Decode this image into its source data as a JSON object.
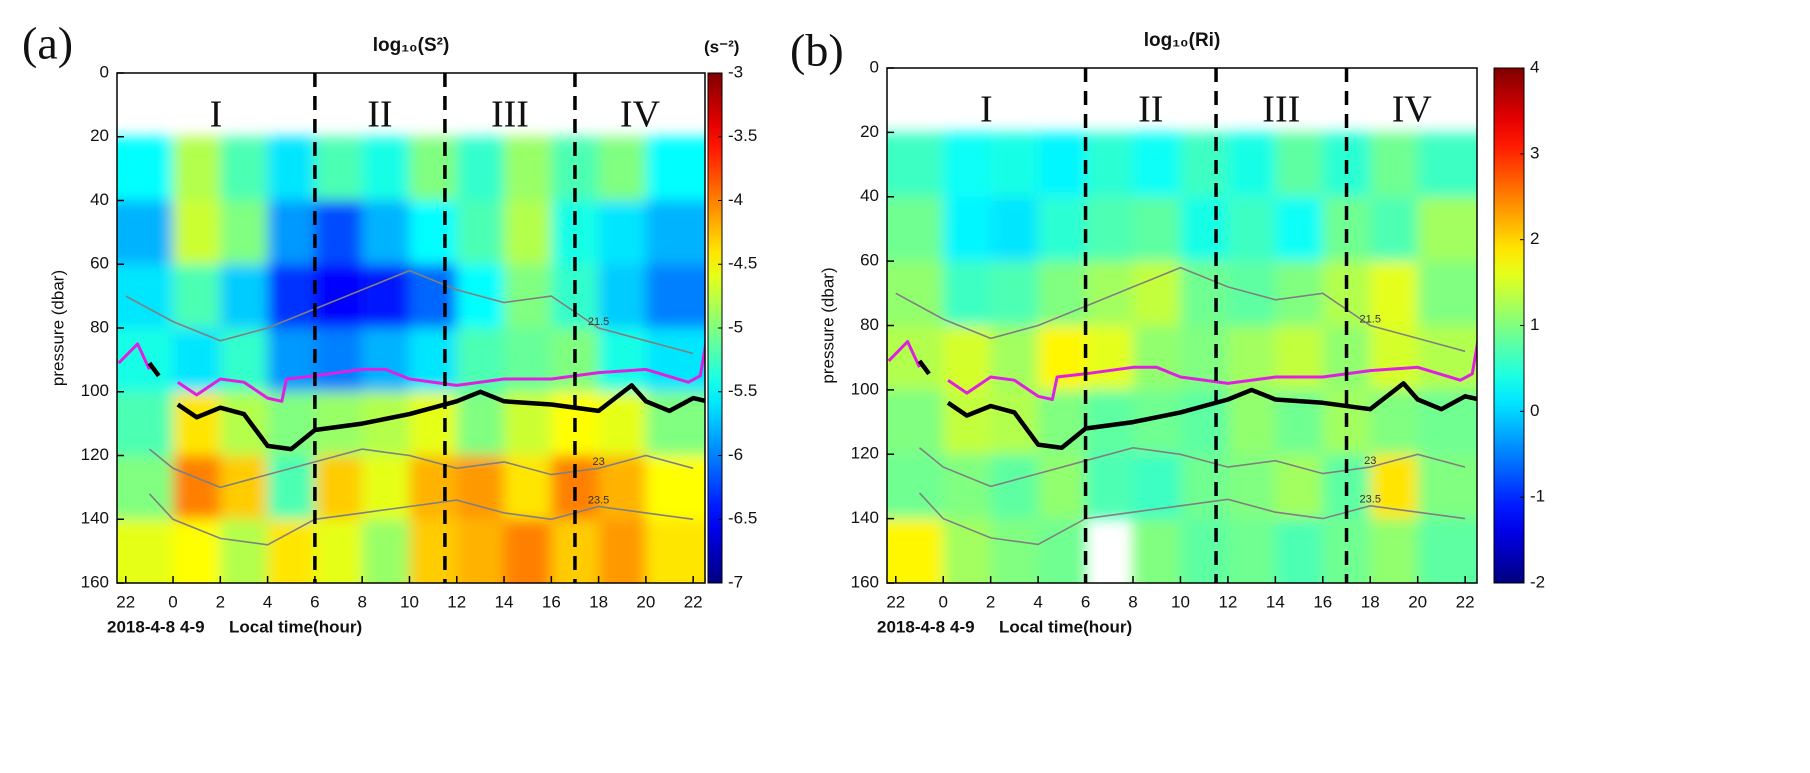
{
  "chart_data": [
    {
      "type": "heatmap",
      "panel_label": "(a)",
      "title": "log₁₀(S²)",
      "colorbar_label": "(s⁻²)",
      "ylabel": "pressure (dbar)",
      "xlabels": [
        "2018-4-8",
        "4-9",
        "Local time(hour)"
      ],
      "xlim": [
        -2.37,
        22.5
      ],
      "ylim": [
        160,
        0
      ],
      "xticks": [
        {
          "value": -2,
          "label": "22"
        },
        0,
        2,
        4,
        6,
        8,
        10,
        12,
        14,
        16,
        18,
        20,
        22
      ],
      "yticks": [
        0,
        20,
        40,
        60,
        80,
        100,
        120,
        140,
        160
      ],
      "zlim": [
        -7,
        -3
      ],
      "zticks": [
        -3,
        -3.5,
        -4,
        -4.5,
        -5,
        -5.5,
        -6,
        -6.5,
        -7
      ],
      "regions": [
        "I",
        "II",
        "III",
        "IV"
      ],
      "dividers": [
        6,
        11.5,
        17
      ],
      "x": [
        -1,
        1,
        3,
        5,
        7,
        9,
        11,
        13,
        15,
        17,
        19,
        21
      ],
      "y": [
        30,
        50,
        70,
        90,
        110,
        130,
        150
      ],
      "z": [
        [
          -5.5,
          -4.8,
          -5.2,
          -5.6,
          -5.2,
          -5.4,
          -5.0,
          -5.3,
          -4.9,
          -5.2,
          -5.0,
          -5.5
        ],
        [
          -5.8,
          -4.7,
          -5.0,
          -5.9,
          -6.2,
          -5.8,
          -5.5,
          -5.2,
          -4.8,
          -5.4,
          -5.6,
          -5.8
        ],
        [
          -5.6,
          -5.2,
          -5.7,
          -6.3,
          -6.5,
          -6.4,
          -6.1,
          -5.5,
          -5.0,
          -5.3,
          -5.7,
          -6.0
        ],
        [
          -5.4,
          -5.6,
          -5.3,
          -5.9,
          -6.0,
          -5.8,
          -5.6,
          -5.2,
          -5.1,
          -5.0,
          -5.4,
          -5.6
        ],
        [
          -5.2,
          -4.4,
          -4.8,
          -5.0,
          -4.9,
          -4.8,
          -4.6,
          -5.0,
          -4.7,
          -4.5,
          -4.6,
          -5.0
        ],
        [
          -5.0,
          -4.0,
          -4.3,
          -5.2,
          -4.3,
          -4.6,
          -4.2,
          -4.1,
          -4.4,
          -4.0,
          -4.2,
          -4.5
        ],
        [
          -4.6,
          -4.5,
          -4.8,
          -4.4,
          -4.6,
          -4.9,
          -4.3,
          -4.2,
          -4.0,
          -4.3,
          -4.1,
          -4.4
        ]
      ],
      "contours": [
        {
          "label": "21.5",
          "color": "#808080",
          "x": [
            -2,
            0,
            2,
            4,
            6,
            8,
            10,
            12,
            14,
            16,
            18,
            20,
            22
          ],
          "y": [
            70,
            78,
            84,
            80,
            74,
            68,
            62,
            68,
            72,
            70,
            80,
            84,
            88
          ]
        },
        {
          "label": "23",
          "color": "#808080",
          "x": [
            -1,
            0,
            2,
            4,
            6,
            8,
            10,
            12,
            14,
            16,
            18,
            20,
            22
          ],
          "y": [
            118,
            124,
            130,
            126,
            122,
            118,
            120,
            124,
            122,
            126,
            124,
            120,
            124
          ]
        },
        {
          "label": "23.5",
          "color": "#808080",
          "x": [
            -1,
            0,
            2,
            4,
            6,
            8,
            10,
            12,
            14,
            16,
            18,
            20,
            22
          ],
          "y": [
            132,
            140,
            146,
            148,
            140,
            138,
            136,
            134,
            138,
            140,
            136,
            138,
            140
          ]
        }
      ],
      "series": [
        {
          "color": "#e020e0",
          "x": [
            -2.3,
            -1.5,
            -1,
            null,
            0.2,
            1,
            2,
            3,
            4,
            4.6,
            4.8,
            6,
            8,
            9,
            10,
            12,
            14,
            16,
            18,
            20,
            21.8,
            22.3,
            22.6
          ],
          "y": [
            91,
            85,
            93,
            null,
            97,
            101,
            96,
            97,
            102,
            103,
            96,
            95,
            93,
            93,
            96,
            98,
            96,
            96,
            94,
            93,
            97,
            95,
            82
          ]
        },
        {
          "color": "#000000",
          "x": [
            -1,
            -0.6,
            null,
            0.2,
            1,
            2,
            3,
            4,
            5,
            6,
            8,
            10,
            12,
            13,
            14,
            16,
            18,
            19.4,
            20,
            21,
            22,
            22.6
          ],
          "y": [
            91,
            95,
            null,
            104,
            108,
            105,
            107,
            117,
            118,
            112,
            110,
            107,
            103,
            100,
            103,
            104,
            106,
            98,
            103,
            106,
            102,
            103
          ]
        }
      ]
    },
    {
      "type": "heatmap",
      "panel_label": "(b)",
      "title": "log₁₀(Ri)",
      "ylabel": "pressure (dbar)",
      "xlabels": [
        "2018-4-8",
        "4-9",
        "Local time(hour)"
      ],
      "xlim": [
        -2.37,
        22.5
      ],
      "ylim": [
        160,
        0
      ],
      "xticks": [
        {
          "value": -2,
          "label": "22"
        },
        0,
        2,
        4,
        6,
        8,
        10,
        12,
        14,
        16,
        18,
        20,
        22
      ],
      "yticks": [
        0,
        20,
        40,
        60,
        80,
        100,
        120,
        140,
        160
      ],
      "zlim": [
        -2,
        4
      ],
      "zticks": [
        4,
        3,
        2,
        1,
        0,
        -1,
        -2
      ],
      "regions": [
        "I",
        "II",
        "III",
        "IV"
      ],
      "dividers": [
        6,
        11.5,
        17
      ],
      "x": [
        -1,
        1,
        3,
        5,
        7,
        9,
        11,
        13,
        15,
        17,
        19,
        21
      ],
      "y": [
        30,
        50,
        70,
        90,
        110,
        130,
        150
      ],
      "z": [
        [
          0.6,
          0.3,
          0.4,
          0.2,
          0.5,
          0.3,
          0.6,
          0.4,
          0.8,
          0.5,
          0.9,
          0.6
        ],
        [
          0.9,
          0.2,
          0.1,
          0.5,
          0.7,
          0.8,
          0.4,
          0.6,
          0.3,
          0.9,
          0.7,
          1.2
        ],
        [
          1.1,
          0.6,
          0.7,
          1.0,
          1.2,
          1.4,
          0.9,
          0.8,
          1.0,
          1.3,
          1.6,
          1.0
        ],
        [
          1.3,
          1.5,
          1.2,
          1.8,
          1.6,
          1.1,
          1.0,
          1.2,
          1.4,
          1.1,
          1.5,
          1.3
        ],
        [
          1.0,
          1.4,
          1.3,
          1.0,
          0.8,
          0.9,
          0.8,
          1.1,
          0.9,
          1.2,
          1.0,
          0.9
        ],
        [
          0.9,
          1.0,
          0.8,
          1.1,
          0.7,
          0.6,
          0.9,
          1.0,
          1.2,
          0.8,
          1.9,
          1.0
        ],
        [
          1.8,
          1.2,
          1.0,
          0.9,
          null,
          1.0,
          0.8,
          0.9,
          0.7,
          0.9,
          1.1,
          0.8
        ]
      ],
      "contours": [
        {
          "label": "21.5",
          "color": "#808080",
          "x": [
            -2,
            0,
            2,
            4,
            6,
            8,
            10,
            12,
            14,
            16,
            18,
            20,
            22
          ],
          "y": [
            70,
            78,
            84,
            80,
            74,
            68,
            62,
            68,
            72,
            70,
            80,
            84,
            88
          ]
        },
        {
          "label": "23",
          "color": "#808080",
          "x": [
            -1,
            0,
            2,
            4,
            6,
            8,
            10,
            12,
            14,
            16,
            18,
            20,
            22
          ],
          "y": [
            118,
            124,
            130,
            126,
            122,
            118,
            120,
            124,
            122,
            126,
            124,
            120,
            124
          ]
        },
        {
          "label": "23.5",
          "color": "#808080",
          "x": [
            -1,
            0,
            2,
            4,
            6,
            8,
            10,
            12,
            14,
            16,
            18,
            20,
            22
          ],
          "y": [
            132,
            140,
            146,
            148,
            140,
            138,
            136,
            134,
            138,
            140,
            136,
            138,
            140
          ]
        }
      ],
      "series": [
        {
          "color": "#e020e0",
          "x": [
            -2.3,
            -1.5,
            -1,
            null,
            0.2,
            1,
            2,
            3,
            4,
            4.6,
            4.8,
            6,
            8,
            9,
            10,
            12,
            14,
            16,
            18,
            20,
            21.8,
            22.3,
            22.6
          ],
          "y": [
            91,
            85,
            93,
            null,
            97,
            101,
            96,
            97,
            102,
            103,
            96,
            95,
            93,
            93,
            96,
            98,
            96,
            96,
            94,
            93,
            97,
            95,
            82
          ]
        },
        {
          "color": "#000000",
          "x": [
            -1,
            -0.6,
            null,
            0.2,
            1,
            2,
            3,
            4,
            5,
            6,
            8,
            10,
            12,
            13,
            14,
            16,
            18,
            19.4,
            20,
            21,
            22,
            22.6
          ],
          "y": [
            91,
            95,
            null,
            104,
            108,
            105,
            107,
            117,
            118,
            112,
            110,
            107,
            103,
            100,
            103,
            104,
            106,
            98,
            103,
            106,
            102,
            103
          ]
        }
      ]
    }
  ]
}
